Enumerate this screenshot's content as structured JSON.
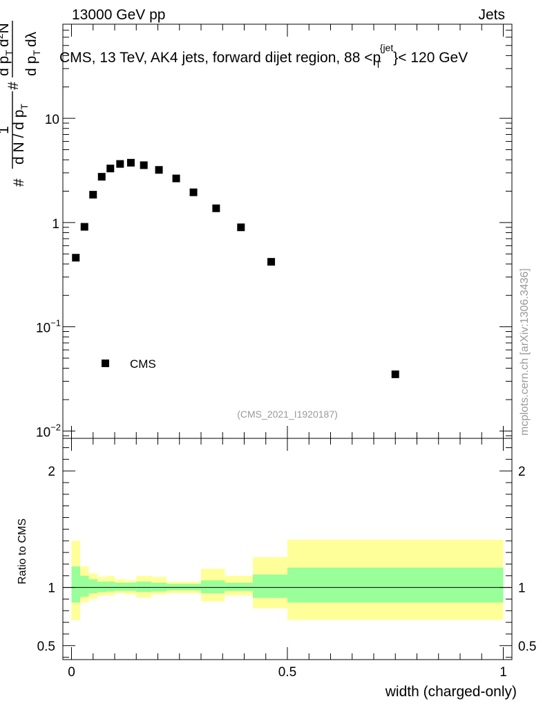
{
  "header": {
    "left": "13000 GeV pp",
    "right": "Jets"
  },
  "title_parts": {
    "main": "CMS, 13 TeV, AK4 jets, forward dijet region, 88 <p",
    "sub": "T",
    "sup": "{jet",
    "tail": "}< 120 GeV"
  },
  "ylabel_main": {
    "hash1": "#",
    "one": "1",
    "dN": "d N / d p",
    "dN_sub": "T",
    "hash2": "#",
    "d2N": "d",
    "d2N_sup": "2",
    "d2N_rest": "N",
    "dp": "d p",
    "dp_sub": "T",
    "dl": "dλ"
  },
  "ylabel_ratio": "Ratio to CMS",
  "xlabel": "width (charged-only)",
  "watermark": "(CMS_2021_I1920187)",
  "side_label": "mcplots.cern.ch [arXiv:1306.3436]",
  "legend": {
    "entry": "CMS"
  },
  "main_ticks": {
    "y": [
      {
        "base": "10",
        "exp": ""
      },
      {
        "base": "1",
        "exp": ""
      },
      {
        "base": "10",
        "exp": "−1"
      },
      {
        "base": "10",
        "exp": "−2"
      }
    ]
  },
  "ratio_ticks": [
    "2",
    "1",
    "0.5"
  ],
  "x_ticks": [
    "0",
    "0.5",
    "1"
  ],
  "colors": {
    "green": "#99ff99",
    "yellow": "#ffff99",
    "marker": "#000000"
  },
  "chart_data": [
    {
      "type": "scatter",
      "title": "CMS, 13 TeV, AK4 jets, forward dijet region, 88 < pT jet < 120 GeV",
      "xlabel": "width (charged-only)",
      "ylabel": "1/N dN/dpT d2N/dpT dlambda",
      "yscale": "log",
      "xlim": [
        -0.02,
        1.02
      ],
      "ylim": [
        0.0085,
        80
      ],
      "series": [
        {
          "name": "CMS",
          "x": [
            0.01,
            0.03,
            0.05,
            0.07,
            0.09,
            0.1125,
            0.1375,
            0.1675,
            0.2025,
            0.2425,
            0.2825,
            0.335,
            0.3925,
            0.4625,
            0.75
          ],
          "values": [
            0.46,
            0.91,
            1.85,
            2.75,
            3.3,
            3.65,
            3.75,
            3.55,
            3.2,
            2.65,
            1.95,
            1.37,
            0.9,
            0.42,
            0.035
          ]
        }
      ]
    },
    {
      "type": "area",
      "title": "Ratio to CMS",
      "ylabel": "Ratio to CMS",
      "xlim": [
        -0.02,
        1.02
      ],
      "ylim": [
        0.38,
        2.28
      ],
      "bin_edges": [
        0,
        0.02,
        0.04,
        0.06,
        0.08,
        0.1,
        0.125,
        0.15,
        0.185,
        0.22,
        0.265,
        0.3,
        0.355,
        0.42,
        0.5,
        1.0
      ],
      "series": [
        {
          "name": "stat uncertainty",
          "low": [
            0.87,
            0.92,
            0.95,
            0.96,
            0.965,
            0.97,
            0.97,
            0.96,
            0.965,
            0.975,
            0.975,
            0.95,
            0.97,
            0.91,
            0.87
          ],
          "high": [
            1.18,
            1.1,
            1.07,
            1.05,
            1.05,
            1.04,
            1.04,
            1.05,
            1.04,
            1.03,
            1.03,
            1.06,
            1.04,
            1.11,
            1.17
          ]
        },
        {
          "name": "total uncertainty",
          "low": [
            0.72,
            0.87,
            0.9,
            0.93,
            0.93,
            0.95,
            0.94,
            0.91,
            0.94,
            0.95,
            0.95,
            0.88,
            0.93,
            0.82,
            0.72
          ],
          "high": [
            1.4,
            1.18,
            1.12,
            1.09,
            1.1,
            1.07,
            1.06,
            1.1,
            1.09,
            1.05,
            1.05,
            1.16,
            1.1,
            1.26,
            1.41
          ]
        }
      ],
      "reference_line": 1
    }
  ]
}
